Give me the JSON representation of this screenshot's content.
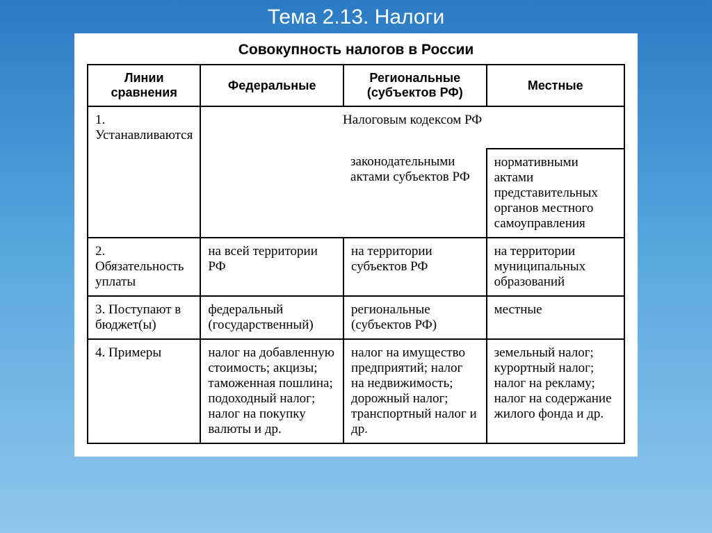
{
  "slide": {
    "title": "Тема 2.13. Налоги",
    "background_gradient": [
      "#2b7bc4",
      "#5ca9e0",
      "#8fc6ec"
    ]
  },
  "table": {
    "title": "Совокупность налогов в России",
    "columns": [
      "Линии сравнения",
      "Федеральные",
      "Региональные (субъектов РФ)",
      "Местные"
    ],
    "rows": [
      {
        "label": "1. Устанавливаются",
        "merged_header": "Налоговым кодексом РФ",
        "federal": "",
        "regional": "законодательными актами субъектов РФ",
        "local": "нормативными актами представительных органов местного самоуправления"
      },
      {
        "label": "2. Обязательность уплаты",
        "federal": "на всей территории РФ",
        "regional": "на территории субъектов РФ",
        "local": "на территории муниципальных образований"
      },
      {
        "label": "3. Поступают в бюджет(ы)",
        "federal": "федеральный (государственный)",
        "regional": "региональные (субъектов РФ)",
        "local": "местные"
      },
      {
        "label": "4. Примеры",
        "federal": "налог на добавленную стоимость; акцизы; таможенная пошлина; подоходный налог; налог на покупку валюты и др.",
        "regional": "налог на имущество предприятий; налог на недвижимость; дорожный налог; транспортный налог и др.",
        "local": "земельный налог; курортный налог; налог на рекламу; налог на содержание жилого фонда и др."
      }
    ],
    "border_color": "#000000",
    "background_color": "#ffffff"
  }
}
